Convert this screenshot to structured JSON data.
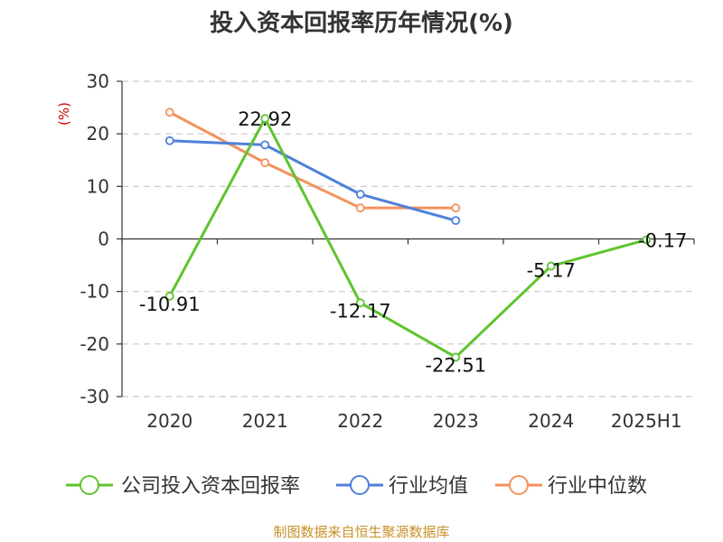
{
  "chart_data": {
    "type": "line",
    "title": "投入资本回报率历年情况(%)",
    "ylabel": "(%)",
    "categories": [
      "2020",
      "2021",
      "2022",
      "2023",
      "2024",
      "2025H1"
    ],
    "ylim": [
      -30,
      30
    ],
    "yticks": [
      "30",
      "20",
      "10",
      "0",
      "-10",
      "-20",
      "-30"
    ],
    "ytick_values": [
      30,
      20,
      10,
      0,
      -10,
      -20,
      -30
    ],
    "grid": true,
    "legend_position": "bottom",
    "series": [
      {
        "name": "公司投入资本回报率",
        "color": "#5ec42f",
        "values": [
          -10.91,
          22.92,
          -12.17,
          -22.51,
          -5.17,
          -0.17
        ],
        "labels": [
          "-10.91",
          "22.92",
          "-12.17",
          "-22.51",
          "-5.17",
          "-0.17"
        ]
      },
      {
        "name": "行业均值",
        "color": "#4f80d9",
        "values": [
          18.7,
          17.9,
          8.5,
          3.5,
          null,
          null
        ]
      },
      {
        "name": "行业中位数",
        "color": "#f5915c",
        "values": [
          24.1,
          14.5,
          5.9,
          5.9,
          null,
          null
        ]
      }
    ]
  },
  "footer": {
    "source": "制图数据来自恒生聚源数据库"
  }
}
